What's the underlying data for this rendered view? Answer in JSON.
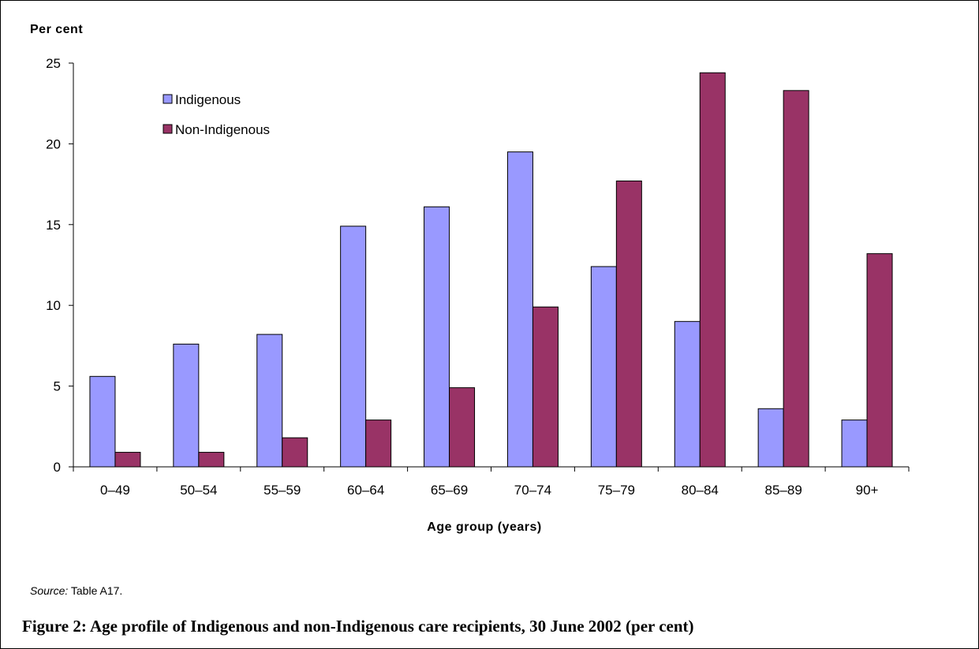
{
  "chart_data": {
    "type": "bar",
    "ylabel": "Per cent",
    "xlabel": "Age group (years)",
    "ylim": [
      0,
      25
    ],
    "yticks": [
      0,
      5,
      10,
      15,
      20,
      25
    ],
    "categories": [
      "0–49",
      "50–54",
      "55–59",
      "60–64",
      "65–69",
      "70–74",
      "75–79",
      "80–84",
      "85–89",
      "90+"
    ],
    "series": [
      {
        "name": "Indigenous",
        "color": "#9999ff",
        "values": [
          5.6,
          7.6,
          8.2,
          14.9,
          16.1,
          19.5,
          12.4,
          9.0,
          3.6,
          2.9
        ]
      },
      {
        "name": "Non-Indigenous",
        "color": "#993366",
        "values": [
          0.9,
          0.9,
          1.8,
          2.9,
          4.9,
          9.9,
          17.7,
          24.4,
          23.3,
          13.2
        ]
      }
    ],
    "legend_position": "top-left",
    "grid": false
  },
  "source": {
    "label": "Source:",
    "text": "Table A17."
  },
  "caption": "Figure 2: Age profile of Indigenous and non-Indigenous care recipients, 30 June 2002 (per cent)"
}
